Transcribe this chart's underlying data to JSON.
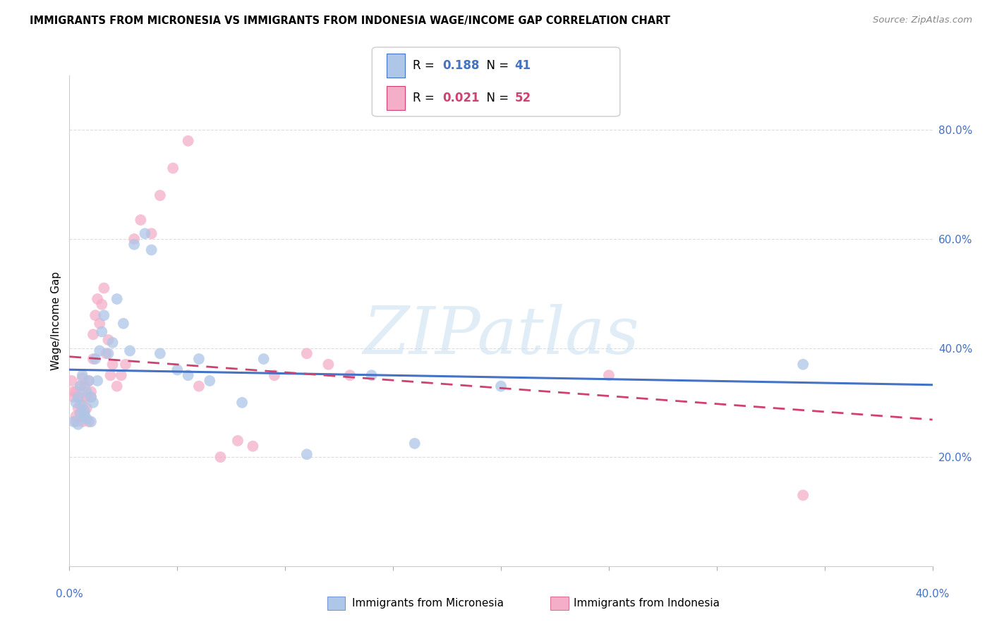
{
  "title": "IMMIGRANTS FROM MICRONESIA VS IMMIGRANTS FROM INDONESIA WAGE/INCOME GAP CORRELATION CHART",
  "source": "Source: ZipAtlas.com",
  "ylabel": "Wage/Income Gap",
  "xlim": [
    0.0,
    0.4
  ],
  "ylim": [
    0.0,
    0.9
  ],
  "yticks": [
    0.2,
    0.4,
    0.6,
    0.8
  ],
  "ytick_labels": [
    "20.0%",
    "40.0%",
    "60.0%",
    "80.0%"
  ],
  "micronesia_color": "#aec6e8",
  "indonesia_color": "#f4aec8",
  "micronesia_R": 0.188,
  "micronesia_N": 41,
  "indonesia_R": 0.021,
  "indonesia_N": 52,
  "micronesia_line_color": "#4472c4",
  "indonesia_line_color": "#d04070",
  "watermark_text": "ZIPatlas",
  "micronesia_x": [
    0.002,
    0.003,
    0.004,
    0.004,
    0.005,
    0.005,
    0.006,
    0.006,
    0.007,
    0.007,
    0.008,
    0.008,
    0.009,
    0.01,
    0.01,
    0.011,
    0.012,
    0.013,
    0.014,
    0.015,
    0.016,
    0.018,
    0.02,
    0.022,
    0.025,
    0.028,
    0.03,
    0.035,
    0.038,
    0.042,
    0.05,
    0.055,
    0.06,
    0.065,
    0.08,
    0.09,
    0.11,
    0.14,
    0.16,
    0.2,
    0.34
  ],
  "micronesia_y": [
    0.265,
    0.3,
    0.31,
    0.26,
    0.33,
    0.28,
    0.35,
    0.295,
    0.285,
    0.275,
    0.32,
    0.27,
    0.34,
    0.31,
    0.265,
    0.3,
    0.38,
    0.34,
    0.395,
    0.43,
    0.46,
    0.39,
    0.41,
    0.49,
    0.445,
    0.395,
    0.59,
    0.61,
    0.58,
    0.39,
    0.36,
    0.35,
    0.38,
    0.34,
    0.3,
    0.38,
    0.205,
    0.35,
    0.225,
    0.33,
    0.37
  ],
  "indonesia_x": [
    0.001,
    0.002,
    0.002,
    0.003,
    0.003,
    0.003,
    0.004,
    0.004,
    0.005,
    0.005,
    0.005,
    0.006,
    0.006,
    0.007,
    0.007,
    0.007,
    0.008,
    0.008,
    0.009,
    0.009,
    0.01,
    0.01,
    0.011,
    0.011,
    0.012,
    0.013,
    0.014,
    0.015,
    0.016,
    0.017,
    0.018,
    0.019,
    0.02,
    0.022,
    0.024,
    0.026,
    0.03,
    0.033,
    0.038,
    0.042,
    0.048,
    0.055,
    0.06,
    0.07,
    0.078,
    0.085,
    0.095,
    0.11,
    0.12,
    0.13,
    0.25,
    0.34
  ],
  "indonesia_y": [
    0.34,
    0.31,
    0.32,
    0.265,
    0.275,
    0.32,
    0.29,
    0.31,
    0.33,
    0.28,
    0.295,
    0.265,
    0.345,
    0.31,
    0.28,
    0.33,
    0.29,
    0.31,
    0.265,
    0.34,
    0.31,
    0.32,
    0.38,
    0.425,
    0.46,
    0.49,
    0.445,
    0.48,
    0.51,
    0.39,
    0.415,
    0.35,
    0.37,
    0.33,
    0.35,
    0.37,
    0.6,
    0.635,
    0.61,
    0.68,
    0.73,
    0.78,
    0.33,
    0.2,
    0.23,
    0.22,
    0.35,
    0.39,
    0.37,
    0.35,
    0.35,
    0.13
  ]
}
